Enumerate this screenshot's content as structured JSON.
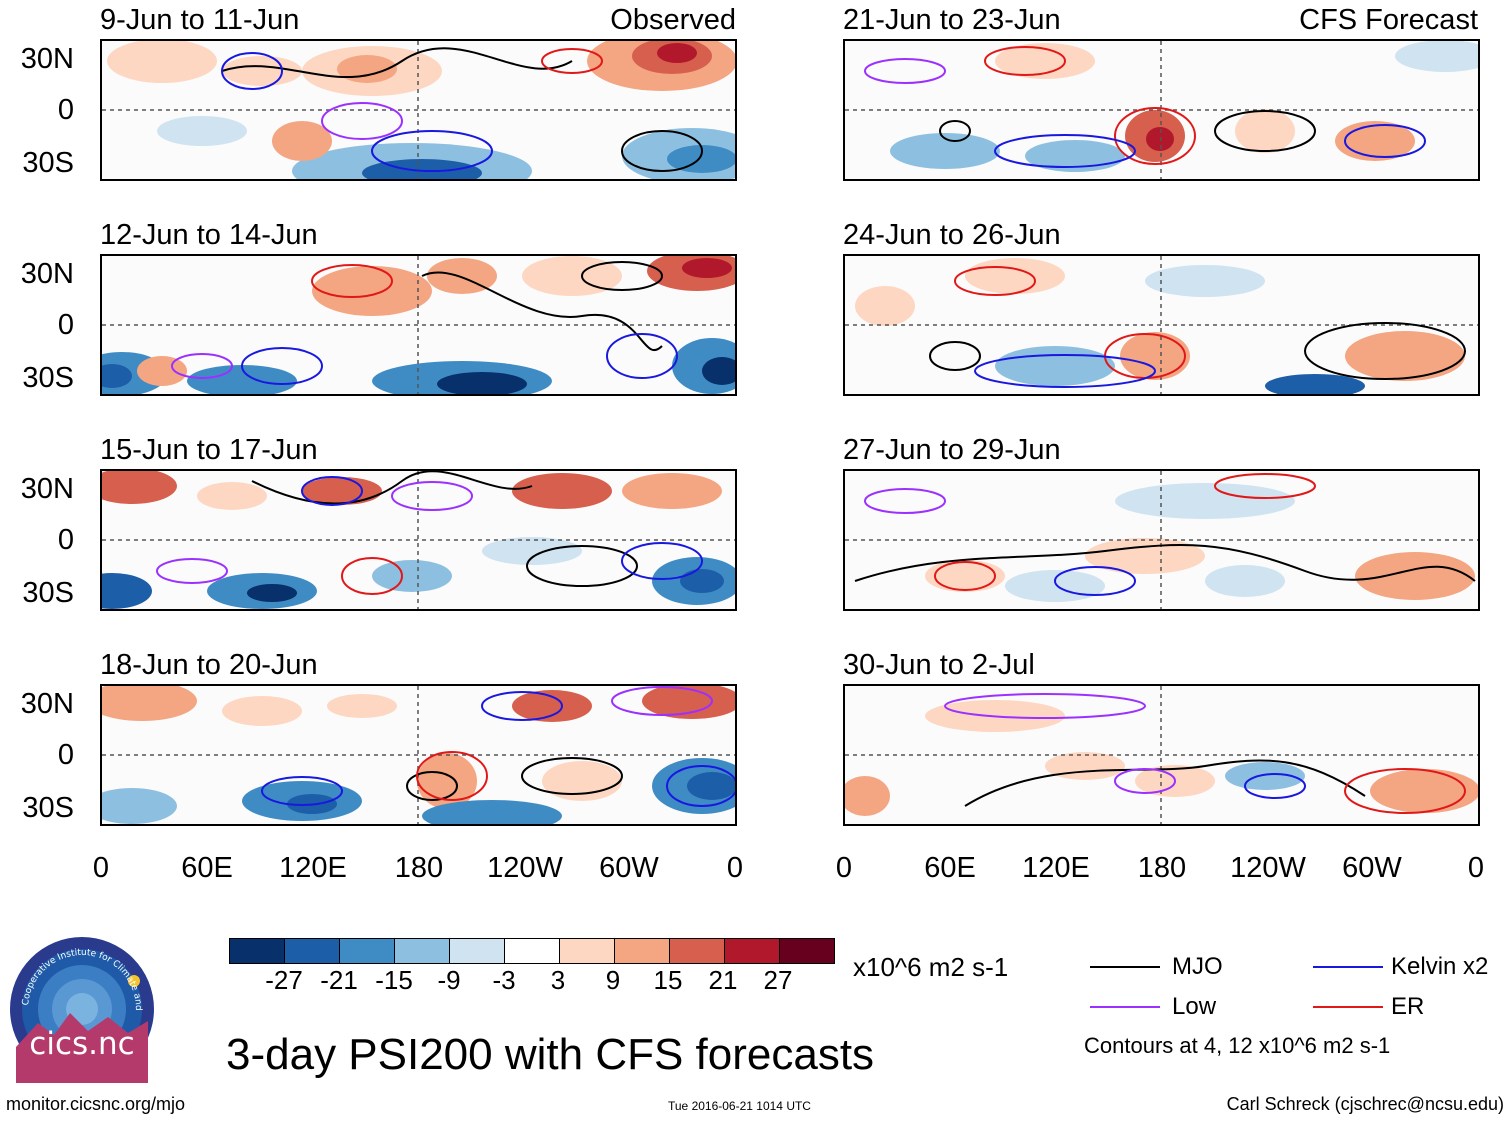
{
  "header": {
    "left_corner": "Observed",
    "right_corner": "CFS Forecast"
  },
  "panels_left": [
    {
      "date": "9-Jun to 11-Jun"
    },
    {
      "date": "12-Jun to 14-Jun"
    },
    {
      "date": "15-Jun to 17-Jun"
    },
    {
      "date": "18-Jun to 20-Jun"
    }
  ],
  "panels_right": [
    {
      "date": "21-Jun to 23-Jun"
    },
    {
      "date": "24-Jun to 26-Jun"
    },
    {
      "date": "27-Jun to 29-Jun"
    },
    {
      "date": "30-Jun to 2-Jul"
    }
  ],
  "axes": {
    "lat_labels": [
      "30N",
      "0",
      "30S"
    ],
    "lon_labels": [
      "0",
      "60E",
      "120E",
      "180",
      "120W",
      "60W",
      "0"
    ]
  },
  "colorbar": {
    "ticks": [
      "-27",
      "-21",
      "-15",
      "-9",
      "-3",
      "3",
      "9",
      "15",
      "21",
      "27"
    ],
    "colors": [
      "#08306b",
      "#1c5ea8",
      "#3f8cc5",
      "#8dc0e0",
      "#cfe3f1",
      "#ffffff",
      "#fdd7c2",
      "#f4a582",
      "#d6604d",
      "#b2182b",
      "#67001f"
    ],
    "units": "x10^6 m2 s-1"
  },
  "legend": {
    "items": [
      {
        "label": "MJO",
        "color": "#000000"
      },
      {
        "label": "Kelvin x2",
        "color": "#1818e0"
      },
      {
        "label": "Low",
        "color": "#9b30ff"
      },
      {
        "label": "ER",
        "color": "#e01818"
      }
    ],
    "contour_note": "Contours at 4, 12 x10^6 m2 s-1"
  },
  "title": "3-day PSI200 with CFS forecasts",
  "logo_text": "cics.nc",
  "logo_ring_text": "Cooperative Institute for Climate and Satellites",
  "footer": {
    "left": "monitor.cicsnc.org/mjo",
    "center": "Tue 2016-06-21 1014 UTC",
    "right": "Carl Schreck (cjschrec@ncsu.edu)"
  }
}
